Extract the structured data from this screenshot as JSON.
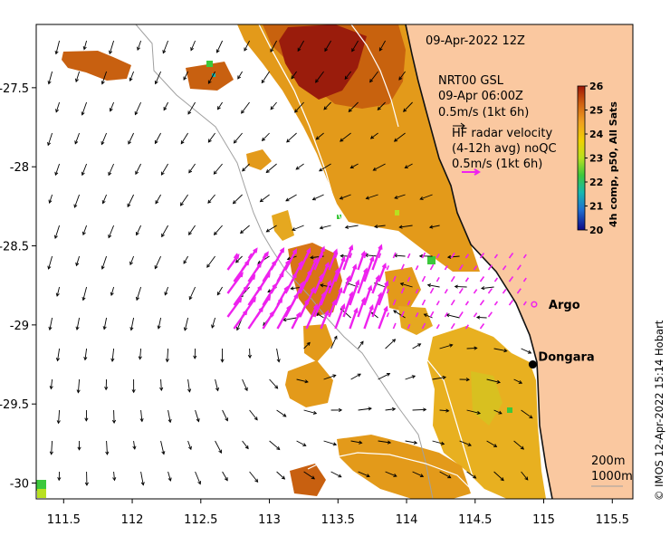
{
  "header": {
    "timestamp": "09-Apr-2022 12Z"
  },
  "legend": {
    "model_name": "NRT00 GSL",
    "model_time": "09-Apr 06:00Z",
    "model_scale": "0.5m/s (1kt 6h)",
    "radar_title": "HF radar velocity",
    "radar_desc": "(4-12h avg) noQC",
    "radar_scale": "0.5m/s (1kt 6h)",
    "radar_color": "#ee22ee"
  },
  "colorbar": {
    "title": "4h comp, p50, All Sats",
    "ticks": [
      "20",
      "21",
      "22",
      "23",
      "24",
      "25",
      "26"
    ],
    "range": [
      20,
      26
    ],
    "colors": [
      "#0d0887",
      "#1f6fd0",
      "#16b8b0",
      "#3cc83c",
      "#b8e020",
      "#f0d000",
      "#f0a020",
      "#d06010",
      "#a01808"
    ]
  },
  "places": {
    "argo": "Argo",
    "dongara": "Dongara",
    "argo_lon": 114.93,
    "argo_lat": -28.87,
    "dongara_lon": 114.92,
    "dongara_lat": -29.25
  },
  "isobaths": {
    "shallow": "200m",
    "deep": "1000m"
  },
  "axes": {
    "x_ticks": [
      "111.5",
      "112",
      "112.5",
      "113",
      "113.5",
      "114",
      "114.5",
      "115",
      "115.5"
    ],
    "y_ticks": [
      "-27.5",
      "-28",
      "-28.5",
      "-29",
      "-29.5",
      "-30"
    ],
    "xlim": [
      111.3,
      115.65
    ],
    "ylim": [
      -30.1,
      -27.1
    ]
  },
  "colors": {
    "land": "#fac8a0",
    "coast": "#111111"
  },
  "credit": "© IMOS 12-Apr-2022 15:14 Hobart"
}
